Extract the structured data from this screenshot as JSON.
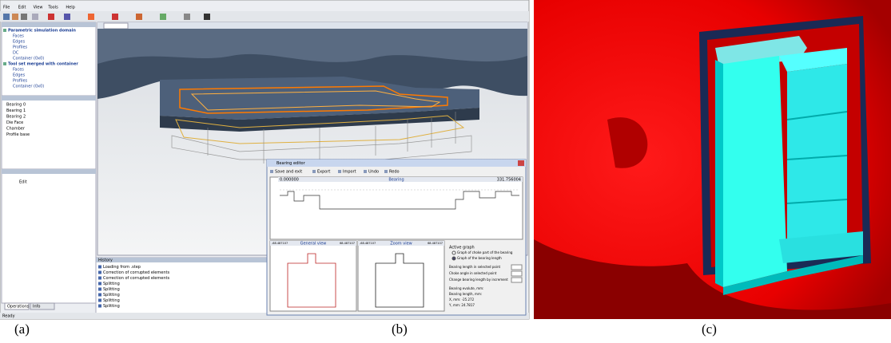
{
  "captions": [
    "(a)",
    "(b)",
    "(c)"
  ],
  "app": {
    "menu": [
      "File",
      "Edit",
      "View",
      "Tools",
      "Help"
    ],
    "tree": [
      {
        "label": "Parametric simulation domain",
        "children": [
          "Faces",
          "Edges",
          "Profiles",
          "DC",
          "Container (0x0)"
        ]
      },
      {
        "label": "Tool set merged with container",
        "children": [
          "Faces",
          "Edges",
          "Profiles",
          "Container (0x0)"
        ]
      }
    ],
    "objects": [
      "Bearing 0",
      "Bearing 1",
      "Bearing 2",
      "Die Face",
      "Chamber",
      "Profile base"
    ],
    "operations": [
      "Edit"
    ],
    "bottom_tabs": [
      "Operations",
      "Info"
    ],
    "history": {
      "title": "History",
      "items": [
        "Loading from .step",
        "Correction of corrupted elements",
        "Correction of corrupted elements",
        "Splitting",
        "Splitting",
        "Splitting",
        "Splitting",
        "Splitting"
      ]
    },
    "status": "Ready"
  },
  "dialog": {
    "title": "Bearing editor",
    "toolbar": [
      "Save and exit",
      "Export",
      "Import",
      "Undo",
      "Redo"
    ],
    "graph": {
      "title": "Bearing",
      "left": "0.000000",
      "right": "331.756004"
    },
    "views": [
      {
        "title": "General view",
        "left": "-68.487107",
        "right": "68.487107"
      },
      {
        "title": "Zoom view",
        "left": "-68.487107",
        "right": "68.487107"
      }
    ],
    "active_graph": {
      "title": "Active graph",
      "options": [
        "Graph of choke part of the bearing",
        "Graph of the bearing length"
      ]
    },
    "fields": [
      "Bearing length in selected point",
      "Choke angle in selected point",
      "Change bearing length by increment"
    ],
    "readouts": [
      "Bearing evolute, mm:",
      "Bearing length, mm:",
      "X, mm: -25.272",
      "Y, mm: 24.7817"
    ]
  }
}
